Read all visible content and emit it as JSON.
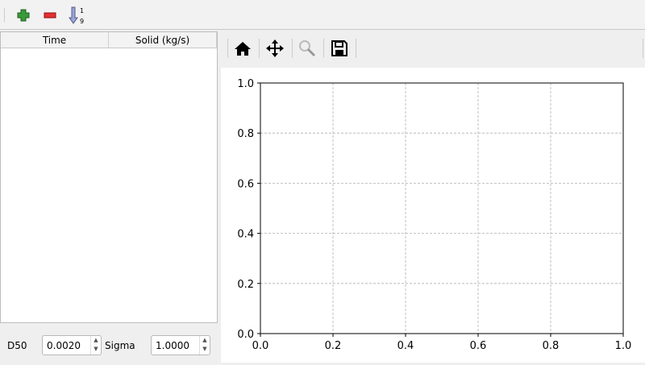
{
  "toolbar": {
    "items": [
      {
        "name": "add-row",
        "icon": "plus-icon",
        "color": "#3a9a3a"
      },
      {
        "name": "remove-row",
        "icon": "minus-icon",
        "color": "#e53030"
      },
      {
        "name": "sort",
        "icon": "sort-ascending-icon",
        "digits_top": "1",
        "digits_bottom": "9"
      }
    ]
  },
  "table": {
    "columns": [
      "Time",
      "Solid (kg/s)"
    ],
    "rows": []
  },
  "params": {
    "d50_label": "D50",
    "d50_value": "0.0020",
    "sigma_label": "Sigma",
    "sigma_value": "1.0000"
  },
  "plot_toolbar": {
    "items": [
      "home-icon",
      "pan-icon",
      "zoom-icon",
      "save-icon"
    ]
  },
  "chart_data": {
    "type": "line",
    "series": [],
    "xlim": [
      0,
      1
    ],
    "ylim": [
      0,
      1
    ],
    "xticks": [
      "0.0",
      "0.2",
      "0.4",
      "0.6",
      "0.8",
      "1.0"
    ],
    "yticks": [
      "0.0",
      "0.2",
      "0.4",
      "0.6",
      "0.8",
      "1.0"
    ],
    "grid": true,
    "grid_style": "dashed",
    "grid_color": "#b0b0b0",
    "xlabel": "",
    "ylabel": "",
    "title": ""
  }
}
